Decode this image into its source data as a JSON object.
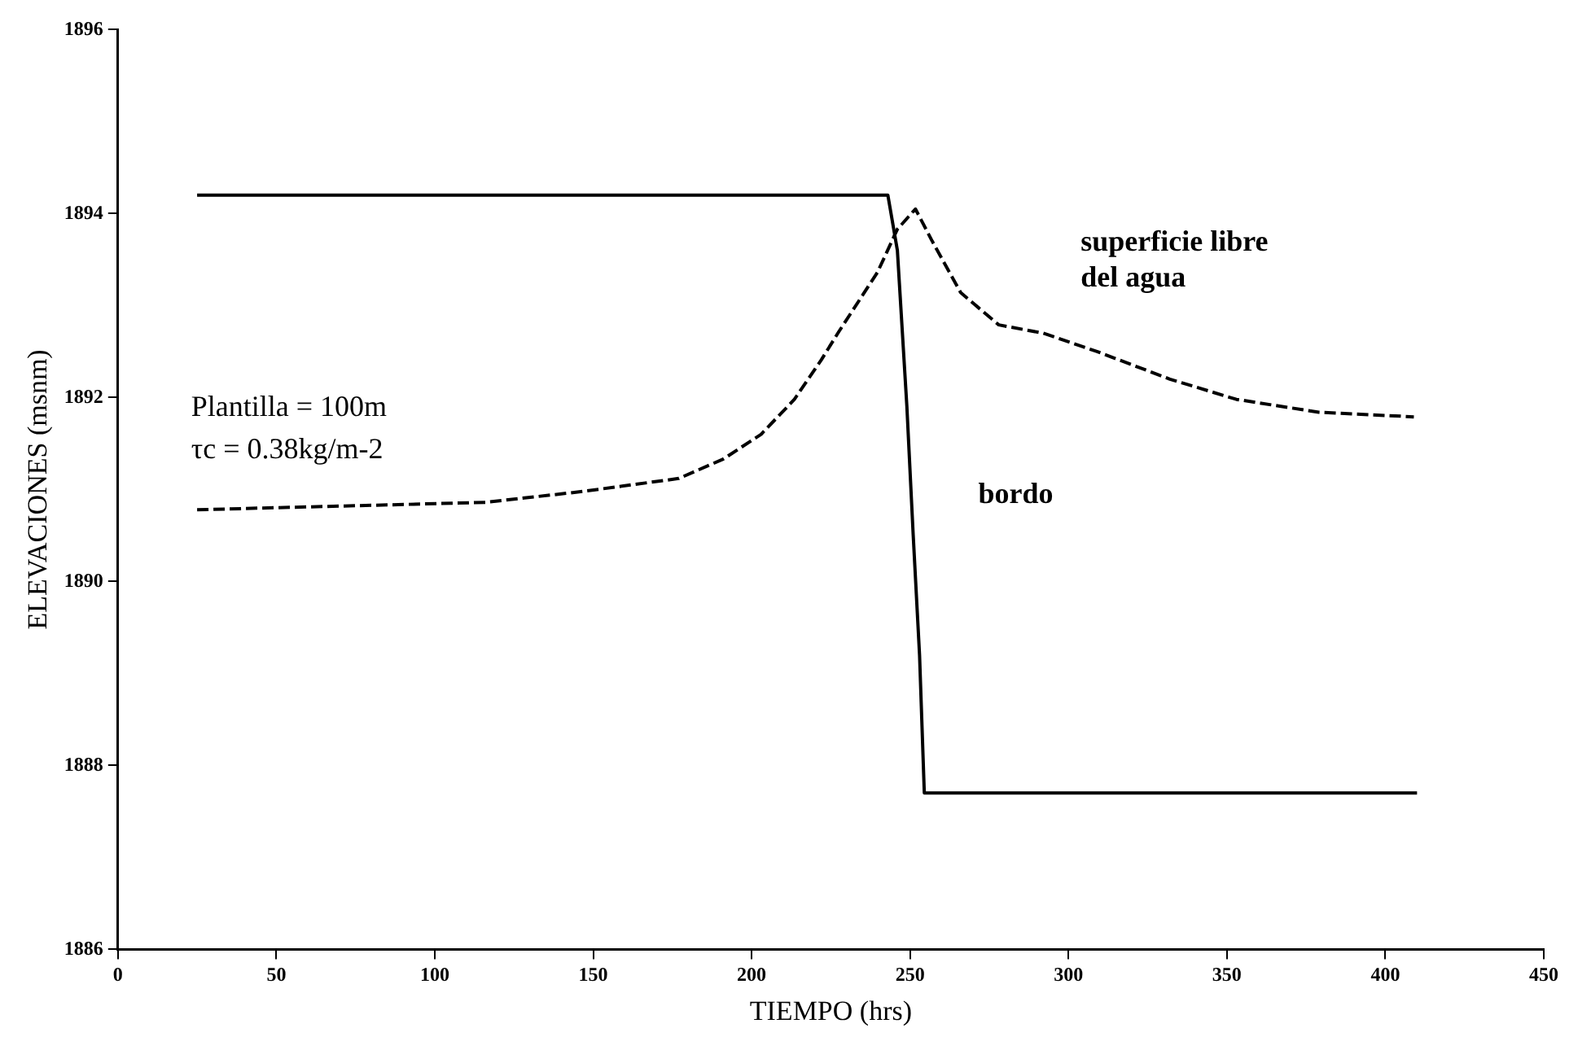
{
  "chart_data": {
    "type": "line",
    "xlabel": "TIEMPO (hrs)",
    "ylabel": "ELEVACIONES (msnm)",
    "xlim": [
      0,
      450
    ],
    "xticks": [
      0,
      50,
      100,
      150,
      200,
      250,
      300,
      350,
      400,
      450
    ],
    "ylim": [
      1886,
      1896
    ],
    "yticks": [
      1886,
      1888,
      1890,
      1892,
      1894,
      1896
    ],
    "grid": false,
    "legend": false,
    "marker": "none",
    "annotations": [
      "Plantilla = 100m",
      "τc = 0.38kg/m-2"
    ],
    "series": [
      {
        "name": "bordo",
        "color": "#000000",
        "line_style": "solid",
        "x": [
          25,
          243,
          246,
          249,
          251,
          253,
          254.5,
          410
        ],
        "values": [
          1894.2,
          1894.2,
          1893.6,
          1891.9,
          1890.5,
          1889.2,
          1887.7,
          1887.7
        ]
      },
      {
        "name": "superficie libre del agua",
        "color": "#000000",
        "line_style": "dashed",
        "x": [
          25,
          116,
          147,
          177,
          191,
          203,
          213.5,
          222,
          227.6,
          239.7,
          246,
          251.7,
          257,
          266,
          278,
          292,
          309,
          332,
          353,
          379,
          409
        ],
        "values": [
          1890.78,
          1890.86,
          1890.98,
          1891.12,
          1891.33,
          1891.6,
          1891.98,
          1892.41,
          1892.72,
          1893.36,
          1893.83,
          1894.05,
          1893.7,
          1893.14,
          1892.79,
          1892.7,
          1892.5,
          1892.2,
          1891.98,
          1891.84,
          1891.79
        ]
      }
    ]
  }
}
